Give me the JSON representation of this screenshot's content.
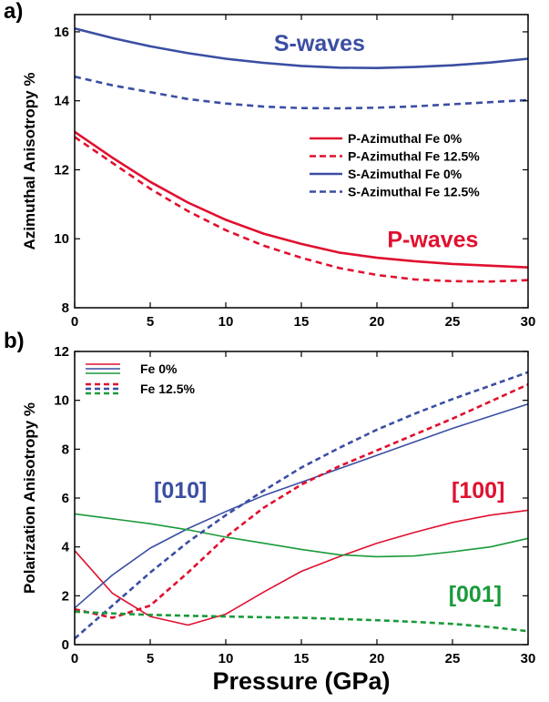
{
  "colors": {
    "red": "#e0102f",
    "blue": "#3a4ea3",
    "green": "#1a9a3a"
  },
  "chart_data": [
    {
      "type": "line",
      "panel_label": "a)",
      "xlabel": "",
      "ylabel": "Azimuthal Anisotropy %",
      "xlim": [
        0,
        30
      ],
      "ylim": [
        8,
        16.5
      ],
      "xticks": [
        0,
        5,
        10,
        15,
        20,
        25,
        30
      ],
      "yticks": [
        8,
        10,
        12,
        14,
        16
      ],
      "legend": "center-right",
      "annotations": [
        {
          "text": "S-waves",
          "x": 16.2,
          "y": 15.45,
          "color": "blue"
        },
        {
          "text": "P-waves",
          "x": 23.7,
          "y": 9.75,
          "color": "red"
        }
      ],
      "series": [
        {
          "name": "P-Azimuthal Fe 0%",
          "color": "red",
          "dash": false,
          "x": [
            0,
            2.5,
            5,
            7.5,
            10,
            12.5,
            15,
            17.5,
            20,
            22.5,
            25,
            27.5,
            30
          ],
          "y": [
            13.1,
            12.35,
            11.65,
            11.05,
            10.55,
            10.15,
            9.85,
            9.6,
            9.45,
            9.35,
            9.27,
            9.22,
            9.17
          ]
        },
        {
          "name": "P-Azimuthal Fe 12.5%",
          "color": "red",
          "dash": true,
          "x": [
            0,
            2.5,
            5,
            7.5,
            10,
            12.5,
            15,
            17.5,
            20,
            22.5,
            25,
            27.5,
            30
          ],
          "y": [
            12.95,
            12.2,
            11.45,
            10.8,
            10.25,
            9.8,
            9.45,
            9.15,
            8.95,
            8.82,
            8.77,
            8.76,
            8.8
          ]
        },
        {
          "name": "S-Azimuthal Fe 0%",
          "color": "blue",
          "dash": false,
          "x": [
            0,
            2.5,
            5,
            7.5,
            10,
            12.5,
            15,
            17.5,
            20,
            22.5,
            25,
            27.5,
            30
          ],
          "y": [
            16.1,
            15.82,
            15.58,
            15.38,
            15.22,
            15.1,
            15.01,
            14.96,
            14.95,
            14.98,
            15.03,
            15.11,
            15.22
          ]
        },
        {
          "name": "S-Azimuthal Fe 12.5%",
          "color": "blue",
          "dash": true,
          "x": [
            0,
            2.5,
            5,
            7.5,
            10,
            12.5,
            15,
            17.5,
            20,
            22.5,
            25,
            27.5,
            30
          ],
          "y": [
            14.7,
            14.45,
            14.25,
            14.05,
            13.92,
            13.83,
            13.79,
            13.78,
            13.8,
            13.84,
            13.9,
            13.96,
            14.02
          ]
        }
      ]
    },
    {
      "type": "line",
      "panel_label": "b)",
      "xlabel": "Pressure (GPa)",
      "ylabel": "Polarization Anisotropy %",
      "xlim": [
        0,
        30
      ],
      "ylim": [
        0,
        12
      ],
      "xticks": [
        0,
        5,
        10,
        15,
        20,
        25,
        30
      ],
      "yticks": [
        0,
        2,
        4,
        6,
        8,
        10,
        12
      ],
      "legend": "top-left",
      "legend_entries": [
        "Fe 0%",
        "Fe 12.5%"
      ],
      "annotations": [
        {
          "text": "[010]",
          "x": 7.0,
          "y": 6.0,
          "color": "blue"
        },
        {
          "text": "[100]",
          "x": 26.7,
          "y": 6.0,
          "color": "red"
        },
        {
          "text": "[001]",
          "x": 26.5,
          "y": 1.75,
          "color": "green"
        }
      ],
      "series": [
        {
          "color": "red",
          "dash": false,
          "x": [
            0,
            2.5,
            5,
            7.5,
            10,
            12.5,
            15,
            17.5,
            20,
            22.5,
            25,
            27.5,
            30
          ],
          "y": [
            3.85,
            2.1,
            1.15,
            0.8,
            1.25,
            2.15,
            3.0,
            3.6,
            4.15,
            4.6,
            5.0,
            5.3,
            5.5
          ]
        },
        {
          "color": "blue",
          "dash": false,
          "x": [
            0,
            2.5,
            5,
            7.5,
            10,
            12.5,
            15,
            17.5,
            20,
            22.5,
            25,
            27.5,
            30
          ],
          "y": [
            1.5,
            2.85,
            3.95,
            4.75,
            5.45,
            6.1,
            6.65,
            7.2,
            7.75,
            8.3,
            8.85,
            9.35,
            9.85
          ]
        },
        {
          "color": "green",
          "dash": false,
          "x": [
            0,
            2.5,
            5,
            7.5,
            10,
            12.5,
            15,
            17.5,
            20,
            22.5,
            25,
            27.5,
            30
          ],
          "y": [
            5.35,
            5.15,
            4.95,
            4.7,
            4.4,
            4.15,
            3.9,
            3.68,
            3.6,
            3.63,
            3.8,
            4.0,
            4.35
          ]
        },
        {
          "color": "red",
          "dash": true,
          "x": [
            0,
            2.5,
            5,
            7.5,
            10,
            12.5,
            15,
            17.5,
            20,
            22.5,
            25,
            27.5,
            30
          ],
          "y": [
            1.45,
            1.1,
            1.6,
            2.95,
            4.4,
            5.6,
            6.55,
            7.3,
            7.95,
            8.6,
            9.25,
            9.95,
            10.65
          ]
        },
        {
          "color": "blue",
          "dash": true,
          "x": [
            0,
            2.5,
            5,
            7.5,
            10,
            12.5,
            15,
            17.5,
            20,
            22.5,
            25,
            27.5,
            30
          ],
          "y": [
            0.25,
            1.6,
            2.95,
            4.2,
            5.3,
            6.3,
            7.25,
            8.05,
            8.8,
            9.45,
            10.05,
            10.6,
            11.15
          ]
        },
        {
          "color": "green",
          "dash": true,
          "x": [
            0,
            2.5,
            5,
            7.5,
            10,
            12.5,
            15,
            17.5,
            20,
            22.5,
            25,
            27.5,
            30
          ],
          "y": [
            1.35,
            1.28,
            1.22,
            1.18,
            1.15,
            1.12,
            1.1,
            1.05,
            1.0,
            0.93,
            0.85,
            0.72,
            0.55
          ]
        }
      ]
    }
  ]
}
